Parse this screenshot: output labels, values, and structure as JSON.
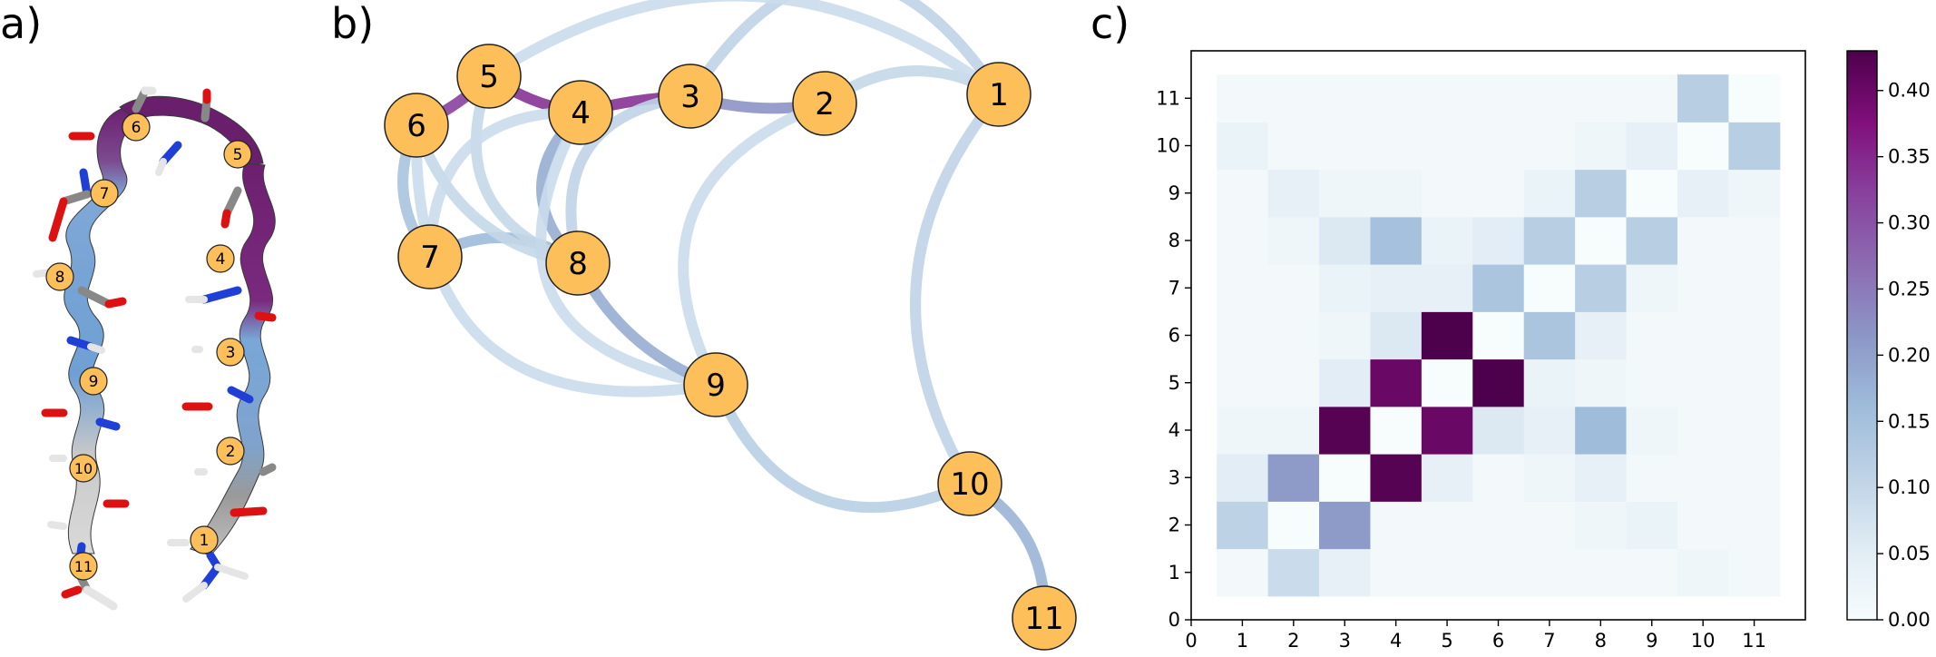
{
  "panel_labels": {
    "a": "a)",
    "b": "b)",
    "c": "c)"
  },
  "colors": {
    "node_fill": "#fdbf5a",
    "node_stroke": "#222222",
    "cmap": [
      "#f7fcfd",
      "#e0ecf4",
      "#bfd3e6",
      "#9ebcda",
      "#8c96c6",
      "#8c6bb1",
      "#88419d",
      "#810f7c",
      "#4d004b"
    ]
  },
  "panel_a": {
    "residue_labels": [
      "6",
      "5",
      "7",
      "4",
      "8",
      "3",
      "9",
      "2",
      "10",
      "1",
      "11"
    ]
  },
  "graph": {
    "nodes": [
      "1",
      "2",
      "3",
      "4",
      "5",
      "6",
      "7",
      "8",
      "9",
      "10",
      "11"
    ],
    "edges": [
      [
        "4",
        "5",
        0.33
      ],
      [
        "3",
        "4",
        0.33
      ],
      [
        "2",
        "3",
        0.2
      ],
      [
        "5",
        "6",
        0.31
      ],
      [
        "3",
        "1",
        0.08
      ],
      [
        "2",
        "1",
        0.07
      ],
      [
        "4",
        "8",
        0.16
      ],
      [
        "8",
        "7",
        0.14
      ],
      [
        "6",
        "7",
        0.12
      ],
      [
        "3",
        "8",
        0.08
      ],
      [
        "4",
        "9",
        0.06
      ],
      [
        "5",
        "8",
        0.07
      ],
      [
        "2",
        "9",
        0.06
      ],
      [
        "8",
        "9",
        0.16
      ],
      [
        "1",
        "10",
        0.08
      ],
      [
        "9",
        "10",
        0.09
      ],
      [
        "10",
        "11",
        0.15
      ],
      [
        "6",
        "9",
        0.06
      ],
      [
        "5",
        "1",
        0.06
      ],
      [
        "6",
        "8",
        0.07
      ],
      [
        "7",
        "4",
        0.06
      ]
    ]
  },
  "chart_data": {
    "type": "heatmap",
    "title": "",
    "xlabel": "",
    "ylabel": "",
    "x_ticks": [
      "0",
      "1",
      "2",
      "3",
      "4",
      "5",
      "6",
      "7",
      "8",
      "9",
      "10",
      "11"
    ],
    "y_ticks": [
      "0",
      "1",
      "2",
      "3",
      "4",
      "5",
      "6",
      "7",
      "8",
      "9",
      "10",
      "11"
    ],
    "xlim": [
      0,
      12
    ],
    "ylim": [
      0,
      12
    ],
    "colorbar": {
      "range": [
        0,
        0.43
      ],
      "ticks": [
        "0.00",
        "0.05",
        "0.10",
        "0.15",
        "0.20",
        "0.25",
        "0.30",
        "0.35",
        "0.40"
      ]
    },
    "matrix_rows_bottom_to_top": [
      [
        0.01,
        0.09,
        0.04,
        0.01,
        0.01,
        0.01,
        0.01,
        0.01,
        0.01,
        0.02,
        0.01
      ],
      [
        0.11,
        0.0,
        0.21,
        0.01,
        0.01,
        0.01,
        0.01,
        0.02,
        0.03,
        0.01,
        0.01
      ],
      [
        0.05,
        0.21,
        0.0,
        0.42,
        0.04,
        0.01,
        0.02,
        0.04,
        0.01,
        0.01,
        0.01
      ],
      [
        0.02,
        0.02,
        0.42,
        0.0,
        0.4,
        0.06,
        0.04,
        0.16,
        0.02,
        0.01,
        0.01
      ],
      [
        0.01,
        0.01,
        0.05,
        0.4,
        0.0,
        0.44,
        0.03,
        0.02,
        0.01,
        0.01,
        0.01
      ],
      [
        0.01,
        0.01,
        0.02,
        0.06,
        0.44,
        0.0,
        0.14,
        0.04,
        0.01,
        0.01,
        0.01
      ],
      [
        0.01,
        0.01,
        0.03,
        0.04,
        0.04,
        0.14,
        0.0,
        0.12,
        0.02,
        0.01,
        0.01
      ],
      [
        0.01,
        0.02,
        0.06,
        0.15,
        0.03,
        0.05,
        0.12,
        0.0,
        0.12,
        0.01,
        0.01
      ],
      [
        0.01,
        0.04,
        0.02,
        0.02,
        0.01,
        0.01,
        0.03,
        0.12,
        0.0,
        0.04,
        0.02
      ],
      [
        0.03,
        0.01,
        0.01,
        0.01,
        0.01,
        0.01,
        0.01,
        0.02,
        0.04,
        0.0,
        0.12
      ],
      [
        0.01,
        0.01,
        0.01,
        0.01,
        0.01,
        0.01,
        0.01,
        0.01,
        0.01,
        0.12,
        0.0
      ]
    ]
  }
}
